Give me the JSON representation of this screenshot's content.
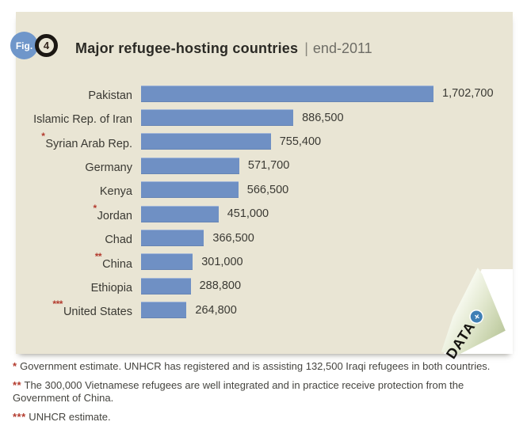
{
  "figure": {
    "fig_label": "Fig.",
    "fig_number": "4",
    "title": "Major refugee-hosting countries",
    "separator": "|",
    "period": "end-2011"
  },
  "chart_data": {
    "type": "bar",
    "orientation": "horizontal",
    "title": "Major refugee-hosting countries | end-2011",
    "categories": [
      "Pakistan",
      "Islamic Rep. of Iran",
      "Syrian Arab Rep.",
      "Germany",
      "Kenya",
      "Jordan",
      "Chad",
      "China",
      "Ethiopia",
      "United States"
    ],
    "values": [
      1702700,
      886500,
      755400,
      571700,
      566500,
      451000,
      366500,
      301000,
      288800,
      264800
    ],
    "value_labels": [
      "1,702,700",
      "886,500",
      "755,400",
      "571,700",
      "566,500",
      "451,000",
      "366,500",
      "301,000",
      "288,800",
      "264,800"
    ],
    "annotations": [
      "",
      "",
      "*",
      "",
      "",
      "*",
      "",
      "**",
      "",
      "***"
    ],
    "xlabel": "",
    "ylabel": "",
    "xlim": [
      0,
      1702700
    ],
    "grid": false,
    "legend_position": "none",
    "bar_color": "#6f90c4"
  },
  "corner_ribbon": {
    "label": "DATA",
    "plus": "+"
  },
  "footnotes": [
    {
      "marker": "*",
      "text": "Government estimate. UNHCR has registered and is assisting 132,500 Iraqi refugees in both countries."
    },
    {
      "marker": "**",
      "text": "The 300,000 Vietnamese refugees are well integrated and in practice receive protection from the Government of China."
    },
    {
      "marker": "***",
      "text": "UNHCR estimate."
    }
  ],
  "colors": {
    "panel_bg": "#e9e5d4",
    "bar": "#6f90c4",
    "fig_badge": "#6f96ca",
    "asterisk_red": "#b33b2e",
    "title_text": "#2b2a25",
    "body_text": "#3a3933",
    "fold_green": "#c7d2ab",
    "plus_circle_blue": "#3f7fb5"
  }
}
